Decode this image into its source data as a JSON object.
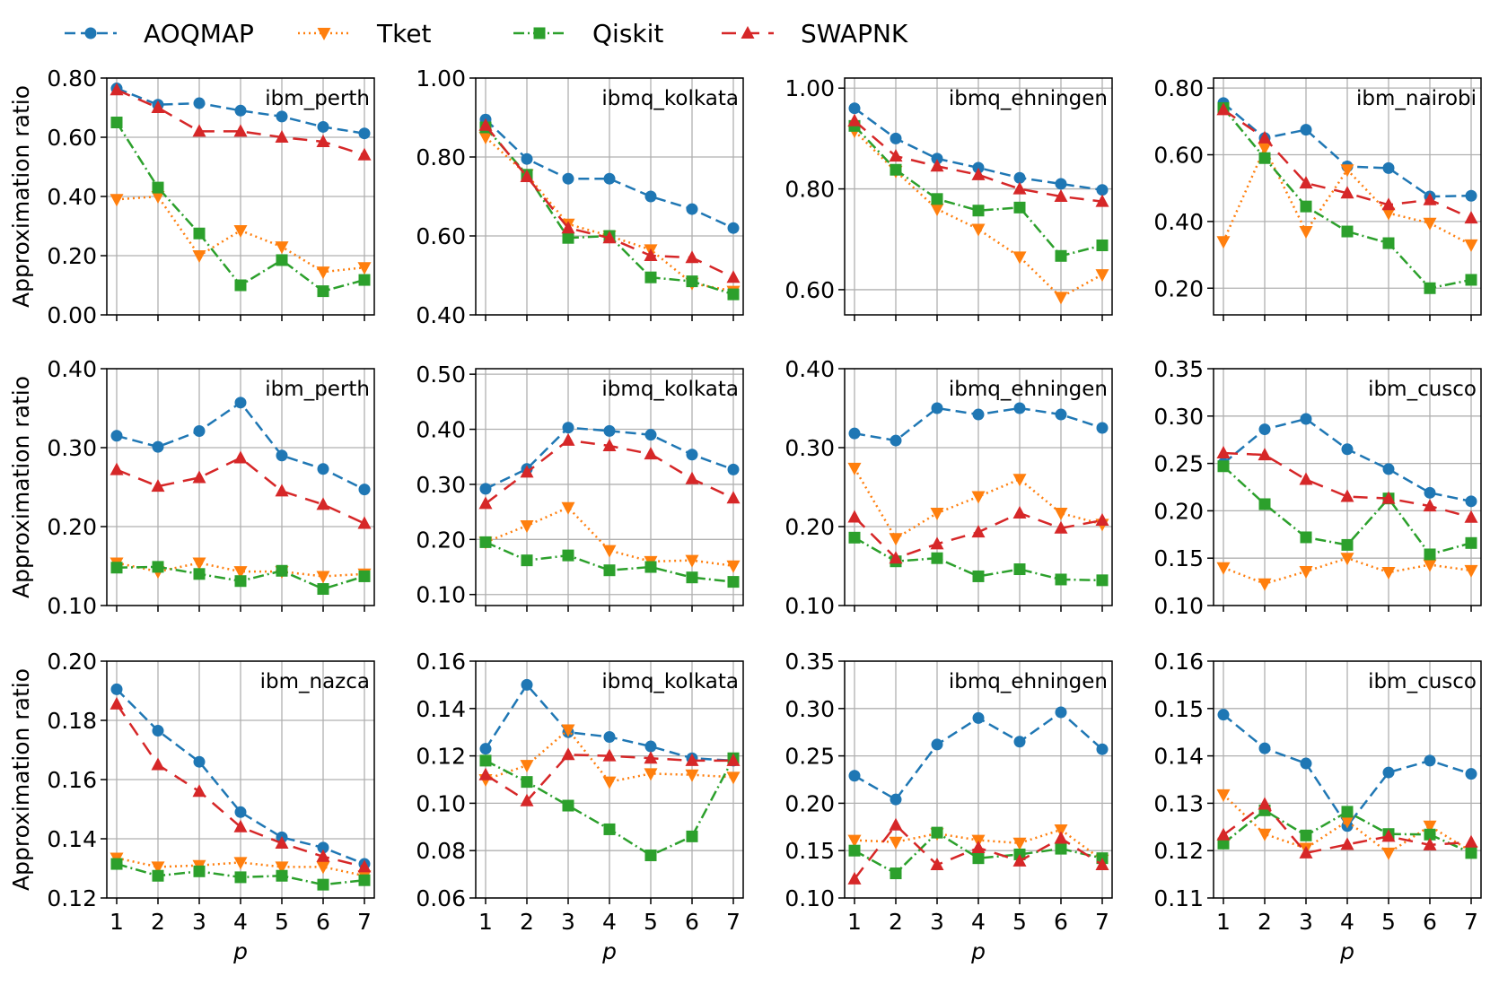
{
  "colors": {
    "AOQMAP": "#1f77b4",
    "Tket": "#ff7f0e",
    "Qiskit": "#2ca02c",
    "SWAPNK": "#d62728"
  },
  "legend": [
    {
      "name": "AOQMAP",
      "marker": "circle",
      "dash": "dashed"
    },
    {
      "name": "Tket",
      "marker": "triangle-down",
      "dash": "dotted"
    },
    {
      "name": "Qiskit",
      "marker": "square",
      "dash": "dashdot"
    },
    {
      "name": "SWAPNK",
      "marker": "triangle-up",
      "dash": "loosedash"
    }
  ],
  "xlabel": "p",
  "ylabel": "Approximation ratio",
  "chart_data": [
    {
      "type": "line",
      "label": "ibm_perth",
      "x": [
        1,
        2,
        3,
        4,
        5,
        6,
        7
      ],
      "xticks": [
        "1",
        "2",
        "3",
        "4",
        "5",
        "6",
        "7"
      ],
      "ylim": [
        0.0,
        0.8
      ],
      "yticks": [
        "0.00",
        "0.20",
        "0.40",
        "0.60",
        "0.80"
      ],
      "grid": true,
      "series": [
        {
          "name": "AOQMAP",
          "values": [
            0.765,
            0.71,
            0.715,
            0.69,
            0.67,
            0.635,
            0.613
          ]
        },
        {
          "name": "Tket",
          "values": [
            0.39,
            0.4,
            0.2,
            0.285,
            0.23,
            0.145,
            0.16
          ]
        },
        {
          "name": "Qiskit",
          "values": [
            0.65,
            0.43,
            0.275,
            0.1,
            0.185,
            0.08,
            0.118
          ]
        },
        {
          "name": "SWAPNK",
          "values": [
            0.76,
            0.7,
            0.62,
            0.62,
            0.6,
            0.585,
            0.54
          ]
        }
      ]
    },
    {
      "type": "line",
      "label": "ibmq_kolkata",
      "x": [
        1,
        2,
        3,
        4,
        5,
        6,
        7
      ],
      "xticks": [
        "1",
        "2",
        "3",
        "4",
        "5",
        "6",
        "7"
      ],
      "ylim": [
        0.4,
        1.0
      ],
      "yticks": [
        "0.40",
        "0.60",
        "0.80",
        "1.00"
      ],
      "grid": true,
      "series": [
        {
          "name": "AOQMAP",
          "values": [
            0.895,
            0.795,
            0.745,
            0.745,
            0.7,
            0.668,
            0.62
          ]
        },
        {
          "name": "Tket",
          "values": [
            0.85,
            0.755,
            0.63,
            0.6,
            0.565,
            0.48,
            0.46
          ]
        },
        {
          "name": "Qiskit",
          "values": [
            0.875,
            0.755,
            0.595,
            0.6,
            0.495,
            0.485,
            0.452
          ]
        },
        {
          "name": "SWAPNK",
          "values": [
            0.88,
            0.75,
            0.62,
            0.595,
            0.55,
            0.545,
            0.495
          ]
        }
      ]
    },
    {
      "type": "line",
      "label": "ibmq_ehningen",
      "x": [
        1,
        2,
        3,
        4,
        5,
        6,
        7
      ],
      "xticks": [
        "1",
        "2",
        "3",
        "4",
        "5",
        "6",
        "7"
      ],
      "ylim": [
        0.55,
        1.02
      ],
      "yticks": [
        "0.60",
        "0.80",
        "1.00"
      ],
      "grid": true,
      "series": [
        {
          "name": "AOQMAP",
          "values": [
            0.96,
            0.9,
            0.86,
            0.842,
            0.822,
            0.81,
            0.798
          ]
        },
        {
          "name": "Tket",
          "values": [
            0.915,
            0.835,
            0.76,
            0.72,
            0.665,
            0.585,
            0.63
          ]
        },
        {
          "name": "Qiskit",
          "values": [
            0.925,
            0.838,
            0.78,
            0.757,
            0.763,
            0.667,
            0.688
          ]
        },
        {
          "name": "SWAPNK",
          "values": [
            0.935,
            0.865,
            0.845,
            0.828,
            0.8,
            0.785,
            0.775
          ]
        }
      ]
    },
    {
      "type": "line",
      "label": "ibm_nairobi",
      "x": [
        1,
        2,
        3,
        4,
        5,
        6,
        7
      ],
      "xticks": [
        "1",
        "2",
        "3",
        "4",
        "5",
        "6",
        "7"
      ],
      "ylim": [
        0.12,
        0.83
      ],
      "yticks": [
        "0.20",
        "0.40",
        "0.60",
        "0.80"
      ],
      "grid": true,
      "series": [
        {
          "name": "AOQMAP",
          "values": [
            0.755,
            0.65,
            0.675,
            0.565,
            0.56,
            0.475,
            0.477
          ]
        },
        {
          "name": "Tket",
          "values": [
            0.34,
            0.62,
            0.37,
            0.555,
            0.425,
            0.395,
            0.33
          ]
        },
        {
          "name": "Qiskit",
          "values": [
            0.74,
            0.59,
            0.445,
            0.37,
            0.335,
            0.2,
            0.225
          ]
        },
        {
          "name": "SWAPNK",
          "values": [
            0.735,
            0.65,
            0.515,
            0.485,
            0.45,
            0.465,
            0.41
          ]
        }
      ]
    },
    {
      "type": "line",
      "label": "ibm_perth",
      "x": [
        1,
        2,
        3,
        4,
        5,
        6,
        7
      ],
      "xticks": [
        "1",
        "2",
        "3",
        "4",
        "5",
        "6",
        "7"
      ],
      "ylim": [
        0.1,
        0.4
      ],
      "yticks": [
        "0.10",
        "0.20",
        "0.30",
        "0.40"
      ],
      "grid": true,
      "series": [
        {
          "name": "AOQMAP",
          "values": [
            0.315,
            0.301,
            0.321,
            0.357,
            0.29,
            0.273,
            0.247
          ]
        },
        {
          "name": "Tket",
          "values": [
            0.154,
            0.143,
            0.154,
            0.143,
            0.143,
            0.137,
            0.14
          ]
        },
        {
          "name": "Qiskit",
          "values": [
            0.148,
            0.149,
            0.14,
            0.131,
            0.144,
            0.121,
            0.137
          ]
        },
        {
          "name": "SWAPNK",
          "values": [
            0.272,
            0.251,
            0.262,
            0.287,
            0.245,
            0.228,
            0.204
          ]
        }
      ]
    },
    {
      "type": "line",
      "label": "ibmq_kolkata",
      "x": [
        1,
        2,
        3,
        4,
        5,
        6,
        7
      ],
      "xticks": [
        "1",
        "2",
        "3",
        "4",
        "5",
        "6",
        "7"
      ],
      "ylim": [
        0.08,
        0.51
      ],
      "yticks": [
        "0.10",
        "0.20",
        "0.30",
        "0.40",
        "0.50"
      ],
      "grid": true,
      "series": [
        {
          "name": "AOQMAP",
          "values": [
            0.292,
            0.328,
            0.403,
            0.397,
            0.39,
            0.354,
            0.327
          ]
        },
        {
          "name": "Tket",
          "values": [
            0.195,
            0.225,
            0.258,
            0.18,
            0.16,
            0.162,
            0.152
          ]
        },
        {
          "name": "Qiskit",
          "values": [
            0.195,
            0.162,
            0.171,
            0.144,
            0.15,
            0.131,
            0.123
          ]
        },
        {
          "name": "SWAPNK",
          "values": [
            0.265,
            0.322,
            0.38,
            0.37,
            0.355,
            0.31,
            0.275
          ]
        }
      ]
    },
    {
      "type": "line",
      "label": "ibmq_ehningen",
      "x": [
        1,
        2,
        3,
        4,
        5,
        6,
        7
      ],
      "xticks": [
        "1",
        "2",
        "3",
        "4",
        "5",
        "6",
        "7"
      ],
      "ylim": [
        0.1,
        0.4
      ],
      "yticks": [
        "0.10",
        "0.20",
        "0.30",
        "0.40"
      ],
      "grid": true,
      "series": [
        {
          "name": "AOQMAP",
          "values": [
            0.318,
            0.309,
            0.35,
            0.342,
            0.35,
            0.342,
            0.325
          ]
        },
        {
          "name": "Tket",
          "values": [
            0.274,
            0.185,
            0.217,
            0.238,
            0.26,
            0.217,
            0.203
          ]
        },
        {
          "name": "Qiskit",
          "values": [
            0.186,
            0.156,
            0.16,
            0.137,
            0.146,
            0.133,
            0.132
          ]
        },
        {
          "name": "SWAPNK",
          "values": [
            0.212,
            0.16,
            0.178,
            0.193,
            0.217,
            0.198,
            0.208
          ]
        }
      ]
    },
    {
      "type": "line",
      "label": "ibm_cusco",
      "x": [
        1,
        2,
        3,
        4,
        5,
        6,
        7
      ],
      "xticks": [
        "1",
        "2",
        "3",
        "4",
        "5",
        "6",
        "7"
      ],
      "ylim": [
        0.1,
        0.35
      ],
      "yticks": [
        "0.10",
        "0.15",
        "0.20",
        "0.25",
        "0.30",
        "0.35"
      ],
      "grid": true,
      "series": [
        {
          "name": "AOQMAP",
          "values": [
            0.25,
            0.286,
            0.297,
            0.265,
            0.244,
            0.219,
            0.21
          ]
        },
        {
          "name": "Tket",
          "values": [
            0.14,
            0.123,
            0.136,
            0.15,
            0.135,
            0.143,
            0.137
          ]
        },
        {
          "name": "Qiskit",
          "values": [
            0.247,
            0.207,
            0.172,
            0.164,
            0.213,
            0.154,
            0.166
          ]
        },
        {
          "name": "SWAPNK",
          "values": [
            0.261,
            0.259,
            0.233,
            0.215,
            0.213,
            0.205,
            0.193
          ]
        }
      ]
    },
    {
      "type": "line",
      "label": "ibm_nazca",
      "x": [
        1,
        2,
        3,
        4,
        5,
        6,
        7
      ],
      "xticks": [
        "1",
        "2",
        "3",
        "4",
        "5",
        "6",
        "7"
      ],
      "ylim": [
        0.12,
        0.2
      ],
      "yticks": [
        "0.12",
        "0.14",
        "0.16",
        "0.18",
        "0.20"
      ],
      "grid": true,
      "series": [
        {
          "name": "AOQMAP",
          "values": [
            0.1905,
            0.1765,
            0.166,
            0.149,
            0.1405,
            0.137,
            0.1315
          ]
        },
        {
          "name": "Tket",
          "values": [
            0.1335,
            0.1305,
            0.131,
            0.132,
            0.1305,
            0.1305,
            0.1275
          ]
        },
        {
          "name": "Qiskit",
          "values": [
            0.1315,
            0.1275,
            0.129,
            0.127,
            0.1275,
            0.1245,
            0.126
          ]
        },
        {
          "name": "SWAPNK",
          "values": [
            0.1855,
            0.165,
            0.156,
            0.144,
            0.1385,
            0.134,
            0.1305
          ]
        }
      ]
    },
    {
      "type": "line",
      "label": "ibmq_kolkata",
      "x": [
        1,
        2,
        3,
        4,
        5,
        6,
        7
      ],
      "xticks": [
        "1",
        "2",
        "3",
        "4",
        "5",
        "6",
        "7"
      ],
      "ylim": [
        0.06,
        0.16
      ],
      "yticks": [
        "0.06",
        "0.08",
        "0.10",
        "0.12",
        "0.14",
        "0.16"
      ],
      "grid": true,
      "series": [
        {
          "name": "AOQMAP",
          "values": [
            0.123,
            0.15,
            0.13,
            0.128,
            0.124,
            0.119,
            0.118
          ]
        },
        {
          "name": "Tket",
          "values": [
            0.11,
            0.116,
            0.131,
            0.109,
            0.1125,
            0.112,
            0.111
          ]
        },
        {
          "name": "Qiskit",
          "values": [
            0.118,
            0.109,
            0.099,
            0.089,
            0.078,
            0.086,
            0.119
          ]
        },
        {
          "name": "SWAPNK",
          "values": [
            0.112,
            0.101,
            0.1205,
            0.12,
            0.119,
            0.118,
            0.118
          ]
        }
      ]
    },
    {
      "type": "line",
      "label": "ibmq_ehningen",
      "x": [
        1,
        2,
        3,
        4,
        5,
        6,
        7
      ],
      "xticks": [
        "1",
        "2",
        "3",
        "4",
        "5",
        "6",
        "7"
      ],
      "ylim": [
        0.1,
        0.35
      ],
      "yticks": [
        "0.10",
        "0.15",
        "0.20",
        "0.25",
        "0.30",
        "0.35"
      ],
      "grid": true,
      "series": [
        {
          "name": "AOQMAP",
          "values": [
            0.229,
            0.204,
            0.262,
            0.29,
            0.265,
            0.296,
            0.257
          ]
        },
        {
          "name": "Tket",
          "values": [
            0.161,
            0.159,
            0.168,
            0.161,
            0.158,
            0.172,
            0.14
          ]
        },
        {
          "name": "Qiskit",
          "values": [
            0.15,
            0.126,
            0.169,
            0.142,
            0.146,
            0.152,
            0.142
          ]
        },
        {
          "name": "SWAPNK",
          "values": [
            0.12,
            0.177,
            0.135,
            0.153,
            0.139,
            0.163,
            0.135
          ]
        }
      ]
    },
    {
      "type": "line",
      "label": "ibm_cusco",
      "x": [
        1,
        2,
        3,
        4,
        5,
        6,
        7
      ],
      "xticks": [
        "1",
        "2",
        "3",
        "4",
        "5",
        "6",
        "7"
      ],
      "ylim": [
        0.11,
        0.16
      ],
      "yticks": [
        "0.11",
        "0.12",
        "0.13",
        "0.14",
        "0.15",
        "0.16"
      ],
      "grid": true,
      "series": [
        {
          "name": "AOQMAP",
          "values": [
            0.1487,
            0.1416,
            0.1384,
            0.1252,
            0.1365,
            0.139,
            0.1362
          ]
        },
        {
          "name": "Tket",
          "values": [
            0.1318,
            0.1235,
            0.1205,
            0.1262,
            0.1195,
            0.1252,
            0.1198
          ]
        },
        {
          "name": "Qiskit",
          "values": [
            0.1215,
            0.1285,
            0.1232,
            0.1282,
            0.1235,
            0.1234,
            0.1195
          ]
        },
        {
          "name": "SWAPNK",
          "values": [
            0.1233,
            0.1298,
            0.1195,
            0.1213,
            0.123,
            0.1212,
            0.1218
          ]
        }
      ]
    }
  ]
}
